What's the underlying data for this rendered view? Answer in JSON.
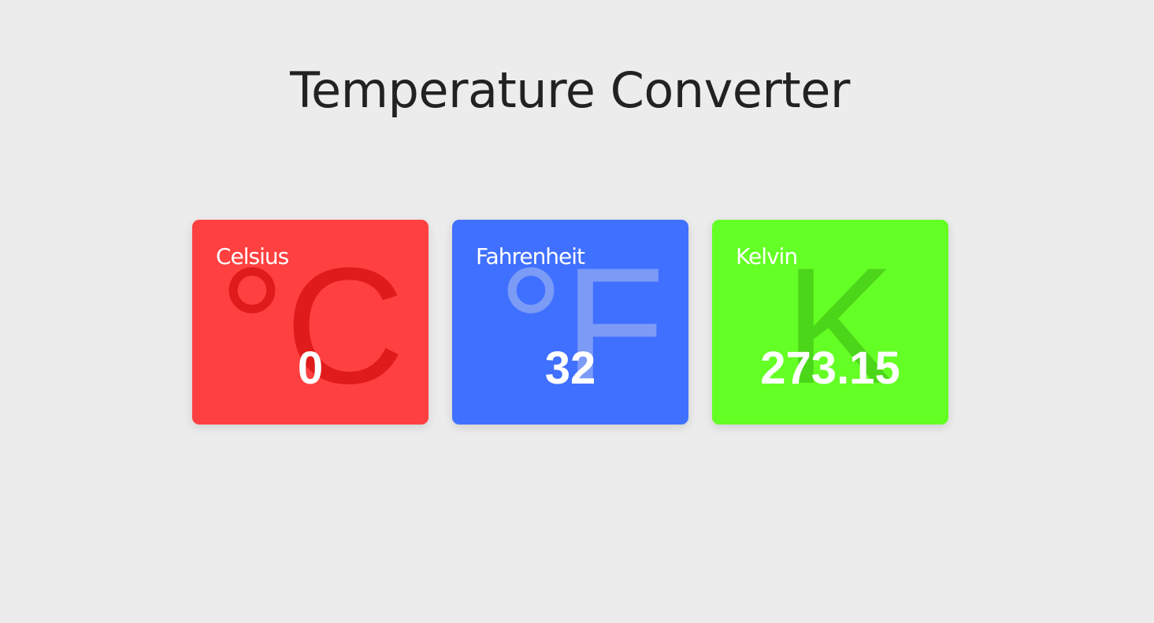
{
  "header": {
    "title": "Temperature Converter"
  },
  "cards": [
    {
      "label": "Celsius",
      "value": "0",
      "symbol": "°C",
      "background": "#ff4040",
      "symbol_color": "#e01b1b"
    },
    {
      "label": "Fahrenheit",
      "value": "32",
      "symbol": "°F",
      "background": "#4070ff",
      "symbol_color": "#7b9bf6"
    },
    {
      "label": "Kelvin",
      "value": "273.15",
      "symbol": "K",
      "background": "#64ff24",
      "symbol_color": "#4cd61a"
    }
  ]
}
